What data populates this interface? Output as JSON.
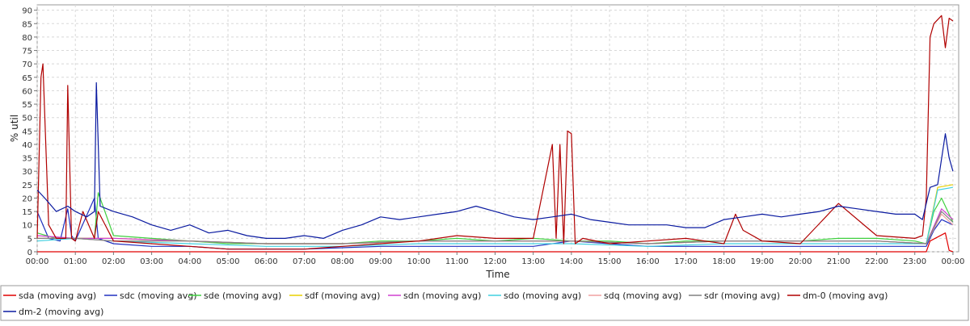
{
  "chart_data": {
    "type": "line",
    "xlabel": "Time",
    "ylabel": "% util",
    "ylim": [
      0,
      92
    ],
    "xlim": [
      0,
      24.15
    ],
    "grid": true,
    "legend_position": "bottom",
    "x_ticks": [
      "00:00",
      "01:00",
      "02:00",
      "03:00",
      "04:00",
      "05:00",
      "06:00",
      "07:00",
      "08:00",
      "09:00",
      "10:00",
      "11:00",
      "12:00",
      "13:00",
      "14:00",
      "15:00",
      "16:00",
      "17:00",
      "18:00",
      "19:00",
      "20:00",
      "21:00",
      "22:00",
      "23:00",
      "00:00"
    ],
    "y_ticks": [
      0,
      5,
      10,
      15,
      20,
      25,
      30,
      35,
      40,
      45,
      50,
      55,
      60,
      65,
      70,
      75,
      80,
      85,
      90
    ],
    "series": [
      {
        "name": "sda (moving avg)",
        "color": "#e00000",
        "x": [
          0,
          3,
          6,
          9,
          12,
          15,
          18,
          21,
          23.3,
          23.4,
          23.8,
          23.9,
          24
        ],
        "y": [
          0,
          0,
          0,
          0,
          0,
          0,
          0,
          0,
          0,
          4,
          7,
          0.5,
          0
        ]
      },
      {
        "name": "sdc (moving avg)",
        "color": "#2030c0",
        "x": [
          0,
          0.3,
          0.6,
          0.8,
          0.9,
          1,
          1.5,
          1.6,
          2,
          3,
          4,
          5,
          6,
          7,
          8,
          9,
          10,
          11,
          12,
          13,
          14,
          15,
          16,
          17,
          18,
          19,
          20,
          21,
          22,
          23,
          23.3,
          23.5,
          23.7,
          24
        ],
        "y": [
          15,
          5,
          4,
          16,
          6,
          4,
          20,
          5,
          3,
          2,
          2,
          1,
          1,
          1,
          1.5,
          2,
          2,
          2,
          2,
          2,
          4,
          3,
          2,
          2,
          2,
          2,
          2,
          2,
          2,
          2,
          2,
          8,
          12,
          10
        ]
      },
      {
        "name": "sde (moving avg)",
        "color": "#40d040",
        "x": [
          0,
          0.5,
          1,
          1.5,
          1.6,
          2,
          3,
          4,
          5,
          6,
          7,
          8,
          9,
          10,
          11,
          12,
          13,
          14,
          15,
          16,
          17,
          18,
          19,
          20,
          21,
          22,
          23,
          23.3,
          23.5,
          23.7,
          24
        ],
        "y": [
          7,
          5,
          5,
          5,
          22,
          6,
          5,
          4,
          3,
          3,
          3,
          3,
          4,
          4,
          5,
          4,
          5,
          4,
          4,
          3,
          4,
          4,
          4,
          4,
          5,
          5,
          4,
          3,
          15,
          20,
          11
        ]
      },
      {
        "name": "sdf (moving avg)",
        "color": "#e8d000",
        "x": [
          0,
          1,
          2,
          4,
          6,
          8,
          10,
          12,
          14,
          16,
          18,
          20,
          22,
          23.3,
          23.6,
          24
        ],
        "y": [
          5,
          5,
          5,
          4,
          3,
          3,
          4,
          4,
          4,
          3,
          4,
          4,
          4,
          3,
          24,
          25
        ]
      },
      {
        "name": "sdn (moving avg)",
        "color": "#d040d0",
        "x": [
          0,
          1,
          2,
          4,
          6,
          8,
          10,
          12,
          14,
          16,
          18,
          20,
          22,
          23.3,
          23.7,
          24
        ],
        "y": [
          6,
          5,
          5,
          4,
          3,
          3,
          4,
          4,
          4,
          3,
          4,
          4,
          4,
          3,
          16,
          12
        ]
      },
      {
        "name": "sdo (moving avg)",
        "color": "#40d0e0",
        "x": [
          0,
          1,
          2,
          4,
          6,
          8,
          10,
          12,
          14,
          16,
          18,
          20,
          22,
          23.3,
          23.6,
          24
        ],
        "y": [
          4,
          5,
          4,
          3,
          2,
          2,
          3,
          3,
          3,
          2,
          3,
          3,
          3,
          3,
          23,
          24
        ]
      },
      {
        "name": "sdq (moving avg)",
        "color": "#f0a0a0",
        "x": [
          0,
          1,
          2,
          4,
          6,
          8,
          10,
          12,
          14,
          16,
          18,
          20,
          22,
          23.3,
          23.7,
          24
        ],
        "y": [
          5,
          5,
          4,
          4,
          3,
          3,
          4,
          4,
          4,
          3,
          4,
          4,
          4,
          3,
          14,
          10
        ]
      },
      {
        "name": "sdr (moving avg)",
        "color": "#808080",
        "x": [
          0,
          1,
          2,
          4,
          6,
          8,
          10,
          12,
          14,
          16,
          18,
          20,
          22,
          23.3,
          23.7,
          24
        ],
        "y": [
          5,
          5,
          4,
          4,
          3,
          3,
          4,
          4,
          4,
          3,
          4,
          4,
          4,
          3,
          15,
          11
        ]
      },
      {
        "name": "dm-0 (moving avg)",
        "color": "#b00000",
        "x": [
          0,
          0.1,
          0.15,
          0.3,
          0.5,
          0.75,
          0.8,
          0.9,
          1,
          1.2,
          1.5,
          1.6,
          2,
          3,
          4,
          5,
          6,
          7,
          8,
          9,
          10,
          11,
          12,
          13,
          13.5,
          13.6,
          13.7,
          13.8,
          13.9,
          14,
          14.1,
          14.3,
          15,
          16,
          17,
          18,
          18.3,
          18.5,
          19,
          20,
          21,
          22,
          23,
          23.2,
          23.3,
          23.4,
          23.5,
          23.7,
          23.8,
          23.9,
          24
        ],
        "y": [
          5,
          65,
          70,
          10,
          5,
          5,
          62,
          5,
          4,
          15,
          5,
          15,
          4,
          3,
          2,
          1,
          1,
          1,
          2,
          3,
          4,
          6,
          5,
          5,
          40,
          5,
          40,
          3,
          45,
          44,
          3,
          5,
          3,
          4,
          5,
          3,
          14,
          8,
          4,
          3,
          18,
          6,
          5,
          6,
          20,
          80,
          85,
          88,
          76,
          87,
          86
        ]
      },
      {
        "name": "dm-2 (moving avg)",
        "color": "#0a1aa0",
        "x": [
          0,
          0.2,
          0.5,
          0.8,
          1,
          1.3,
          1.5,
          1.55,
          1.65,
          2,
          2.5,
          3,
          3.5,
          4,
          4.5,
          5,
          5.5,
          6,
          6.5,
          7,
          7.5,
          8,
          8.5,
          9,
          9.5,
          10,
          10.5,
          11,
          11.5,
          12,
          12.5,
          13,
          13.5,
          14,
          14.5,
          15,
          15.5,
          16,
          16.5,
          17,
          17.5,
          18,
          18.5,
          19,
          19.5,
          20,
          20.5,
          21,
          21.5,
          22,
          22.5,
          23,
          23.2,
          23.4,
          23.6,
          23.8,
          23.9,
          24
        ],
        "y": [
          23,
          20,
          15,
          17,
          15,
          13,
          15,
          63,
          17,
          15,
          13,
          10,
          8,
          10,
          7,
          8,
          6,
          5,
          5,
          6,
          5,
          8,
          10,
          13,
          12,
          13,
          14,
          15,
          17,
          15,
          13,
          12,
          13,
          14,
          12,
          11,
          10,
          10,
          10,
          9,
          9,
          12,
          13,
          14,
          13,
          14,
          15,
          17,
          16,
          15,
          14,
          14,
          12,
          24,
          25,
          44,
          35,
          30
        ]
      }
    ]
  }
}
